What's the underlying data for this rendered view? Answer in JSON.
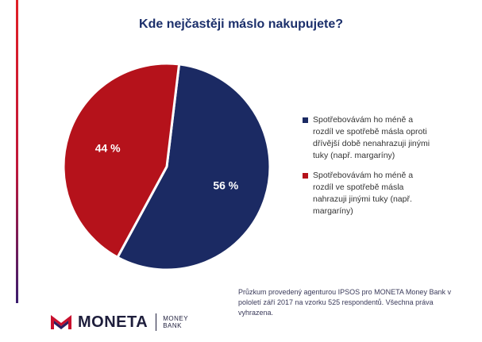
{
  "chart_data": {
    "type": "pie",
    "title": "Kde nejčastěji máslo nakupujete?",
    "categories": [
      "Spotřebovávám ho méně a rozdíl ve spotřebě másla oproti dřívější době nenahrazuji jinými tuky (např. margaríny)",
      "Spotřebovávám ho méně a rozdíl ve spotřebě másla nahrazuji jinými tuky (např. margaríny)"
    ],
    "values": [
      56,
      44
    ],
    "value_labels": [
      "56 %",
      "44 %"
    ],
    "colors": [
      "#1b2a63",
      "#b5121b"
    ],
    "legend_position": "right"
  },
  "footnote": "Průzkum provedený agenturou IPSOS pro MONETA Money Bank v pololetí září 2017 na vzorku 525 respondentů. Všechna práva vyhrazena.",
  "logo": {
    "name": "MONETA",
    "sub_line1": "MONEY",
    "sub_line2": "BANK"
  }
}
